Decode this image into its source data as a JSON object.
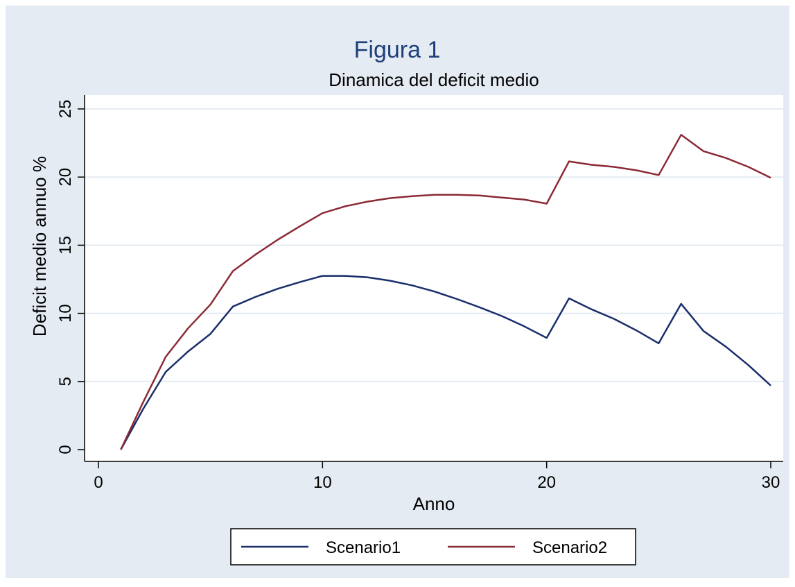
{
  "chart_data": {
    "type": "line",
    "title": "Figura 1",
    "subtitle": "Dinamica del deficit medio",
    "xlabel": "Anno",
    "ylabel": "Deficit medio annuo %",
    "xlim": [
      0,
      30
    ],
    "ylim": [
      0,
      25
    ],
    "xticks": [
      0,
      10,
      20,
      30
    ],
    "yticks": [
      0,
      5,
      10,
      15,
      20,
      25
    ],
    "grid": true,
    "legend_position": "bottom",
    "x": [
      1,
      2,
      3,
      4,
      5,
      6,
      7,
      8,
      9,
      10,
      11,
      12,
      13,
      14,
      15,
      16,
      17,
      18,
      19,
      20,
      21,
      22,
      23,
      24,
      25,
      26,
      27,
      28,
      29,
      30
    ],
    "series": [
      {
        "name": "Scenario1",
        "color": "#1a2f6b",
        "values": [
          0,
          3.0,
          5.7,
          7.2,
          8.5,
          10.5,
          11.2,
          11.8,
          12.3,
          12.75,
          12.75,
          12.65,
          12.4,
          12.05,
          11.6,
          11.05,
          10.45,
          9.8,
          9.05,
          8.2,
          11.1,
          10.3,
          9.6,
          8.75,
          7.8,
          10.7,
          8.7,
          7.55,
          6.2,
          4.7
        ]
      },
      {
        "name": "Scenario2",
        "color": "#8b2a36",
        "values": [
          0,
          3.5,
          6.8,
          8.9,
          10.65,
          13.1,
          14.3,
          15.4,
          16.4,
          17.35,
          17.85,
          18.2,
          18.45,
          18.6,
          18.7,
          18.7,
          18.65,
          18.5,
          18.35,
          18.05,
          21.15,
          20.9,
          20.75,
          20.5,
          20.15,
          23.1,
          21.9,
          21.4,
          20.75,
          19.95
        ]
      }
    ]
  }
}
